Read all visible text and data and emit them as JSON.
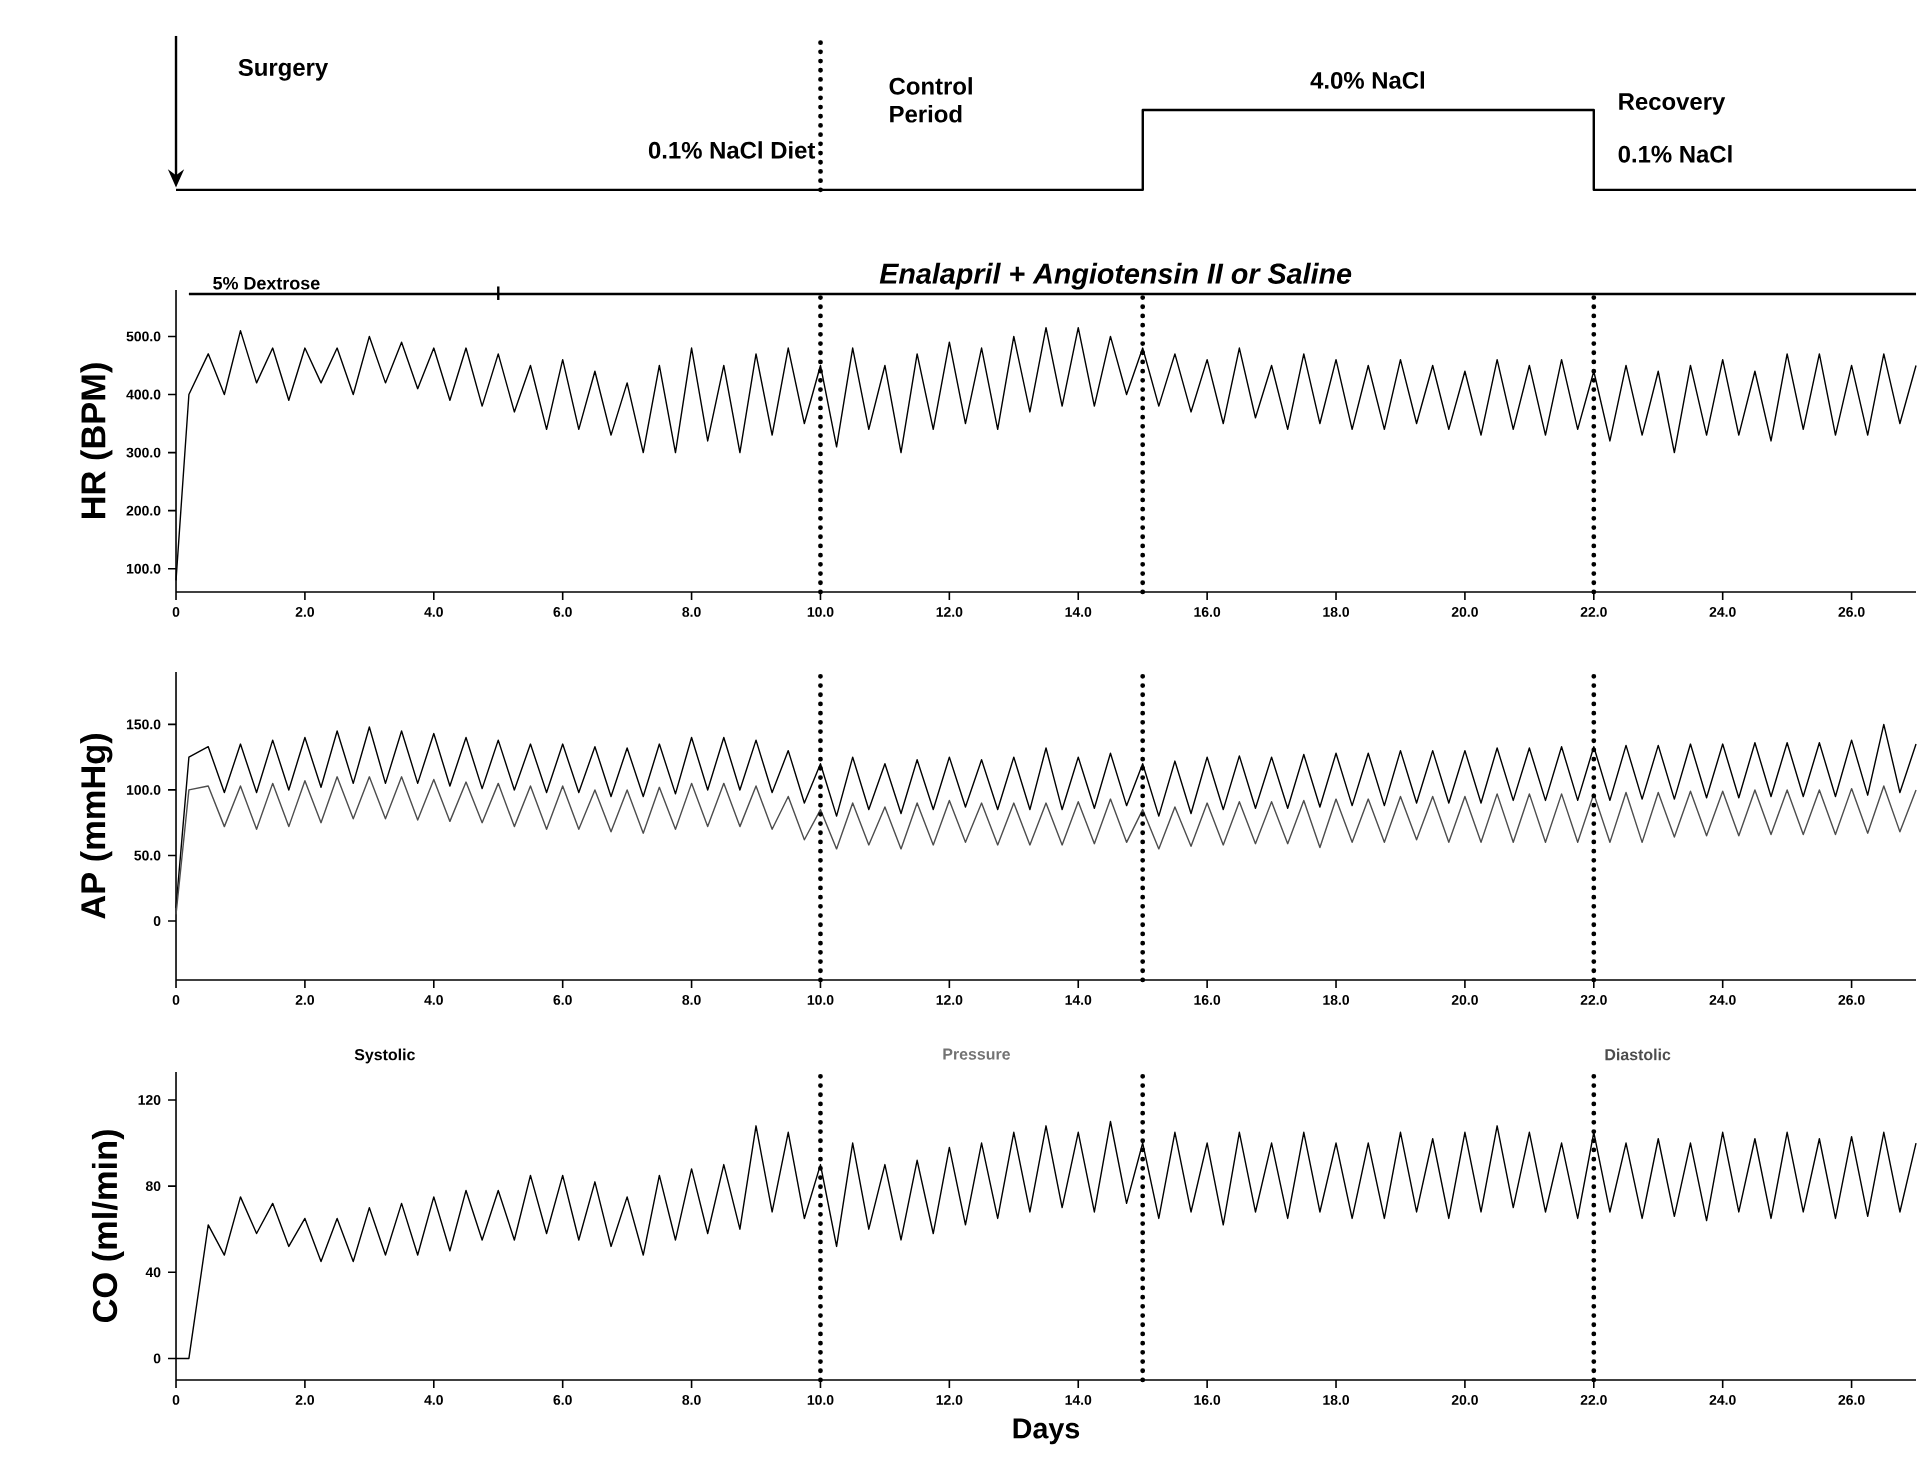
{
  "chart_data": [
    {
      "type": "other",
      "annotations": [
        "Surgery",
        "0.1% NaCl Diet",
        "Control Period",
        "4.0% NaCl",
        "Recovery",
        "0.1% NaCl",
        "5% Dextrose",
        "Enalapril + Angiotensin II  or  Saline"
      ]
    },
    {
      "type": "line",
      "ylabel": "HR (BPM)",
      "xlim": [
        0,
        27
      ],
      "ylim": [
        60,
        580
      ],
      "xticks": [
        0,
        {
          "value": 2,
          "label": "2.0"
        },
        {
          "value": 4,
          "label": "4.0"
        },
        {
          "value": 6,
          "label": "6.0"
        },
        {
          "value": 8,
          "label": "8.0"
        },
        {
          "value": 10,
          "label": "10.0"
        },
        {
          "value": 12,
          "label": "12.0"
        },
        {
          "value": 14,
          "label": "14.0"
        },
        {
          "value": 16,
          "label": "16.0"
        },
        {
          "value": 18,
          "label": "18.0"
        },
        {
          "value": 20,
          "label": "20.0"
        },
        {
          "value": 22,
          "label": "22.0"
        },
        {
          "value": 24,
          "label": "24.0"
        },
        {
          "value": 26,
          "label": "26.0"
        }
      ],
      "yticks": [
        {
          "value": 100,
          "label": "100.0"
        },
        {
          "value": 200,
          "label": "200.0"
        },
        {
          "value": 300,
          "label": "300.0"
        },
        {
          "value": 400,
          "label": "400.0"
        },
        {
          "value": 500,
          "label": "500.0"
        }
      ],
      "x": [
        0,
        0.2,
        0.5,
        0.75,
        1,
        1.25,
        1.5,
        1.75,
        2,
        2.25,
        2.5,
        2.75,
        3,
        3.25,
        3.5,
        3.75,
        4,
        4.25,
        4.5,
        4.75,
        5,
        5.25,
        5.5,
        5.75,
        6,
        6.25,
        6.5,
        6.75,
        7,
        7.25,
        7.5,
        7.75,
        8,
        8.25,
        8.5,
        8.75,
        9,
        9.25,
        9.5,
        9.75,
        10,
        10.25,
        10.5,
        10.75,
        11,
        11.25,
        11.5,
        11.75,
        12,
        12.25,
        12.5,
        12.75,
        13,
        13.25,
        13.5,
        13.75,
        14,
        14.25,
        14.5,
        14.75,
        15,
        15.25,
        15.5,
        15.75,
        16,
        16.25,
        16.5,
        16.75,
        17,
        17.25,
        17.5,
        17.75,
        18,
        18.25,
        18.5,
        18.75,
        19,
        19.25,
        19.5,
        19.75,
        20,
        20.25,
        20.5,
        20.75,
        21,
        21.25,
        21.5,
        21.75,
        22,
        22.25,
        22.5,
        22.75,
        23,
        23.25,
        23.5,
        23.75,
        24,
        24.25,
        24.5,
        24.75,
        25,
        25.25,
        25.5,
        25.75,
        26,
        26.25,
        26.5,
        26.75,
        27
      ],
      "series": [
        {
          "color": "#000000",
          "values": [
            80,
            400,
            470,
            400,
            510,
            420,
            480,
            390,
            480,
            420,
            480,
            400,
            500,
            420,
            490,
            410,
            480,
            390,
            480,
            380,
            470,
            370,
            450,
            340,
            460,
            340,
            440,
            330,
            420,
            300,
            450,
            300,
            480,
            320,
            450,
            300,
            470,
            330,
            480,
            350,
            450,
            310,
            480,
            340,
            450,
            300,
            470,
            340,
            490,
            350,
            480,
            340,
            500,
            370,
            515,
            380,
            515,
            380,
            500,
            400,
            480,
            380,
            470,
            370,
            460,
            350,
            480,
            360,
            450,
            340,
            470,
            350,
            460,
            340,
            450,
            340,
            460,
            350,
            450,
            340,
            440,
            330,
            460,
            340,
            450,
            330,
            460,
            340,
            440,
            320,
            450,
            330,
            440,
            300,
            450,
            330,
            460,
            330,
            440,
            320,
            470,
            340,
            470,
            330,
            450,
            330,
            470,
            350,
            450
          ]
        }
      ],
      "ref_lines": [
        {
          "axis": "x",
          "value": 10,
          "line_style": "dotted"
        },
        {
          "axis": "x",
          "value": 15,
          "line_style": "dotted"
        },
        {
          "axis": "x",
          "value": 22,
          "line_style": "dotted"
        }
      ]
    },
    {
      "type": "line",
      "ylabel": "AP (mmHg)",
      "xlim": [
        0,
        27
      ],
      "ylim": [
        -45,
        190
      ],
      "legend": "bottom",
      "xticks": [
        0,
        {
          "value": 2,
          "label": "2.0"
        },
        {
          "value": 4,
          "label": "4.0"
        },
        {
          "value": 6,
          "label": "6.0"
        },
        {
          "value": 8,
          "label": "8.0"
        },
        {
          "value": 10,
          "label": "10.0"
        },
        {
          "value": 12,
          "label": "12.0"
        },
        {
          "value": 14,
          "label": "14.0"
        },
        {
          "value": 16,
          "label": "16.0"
        },
        {
          "value": 18,
          "label": "18.0"
        },
        {
          "value": 20,
          "label": "20.0"
        },
        {
          "value": 22,
          "label": "22.0"
        },
        {
          "value": 24,
          "label": "24.0"
        },
        {
          "value": 26,
          "label": "26.0"
        }
      ],
      "yticks": [
        0,
        {
          "value": 50,
          "label": "50.0"
        },
        {
          "value": 100,
          "label": "100.0"
        },
        {
          "value": 150,
          "label": "150.0"
        }
      ],
      "x": [
        0,
        0.2,
        0.5,
        0.75,
        1,
        1.25,
        1.5,
        1.75,
        2,
        2.25,
        2.5,
        2.75,
        3,
        3.25,
        3.5,
        3.75,
        4,
        4.25,
        4.5,
        4.75,
        5,
        5.25,
        5.5,
        5.75,
        6,
        6.25,
        6.5,
        6.75,
        7,
        7.25,
        7.5,
        7.75,
        8,
        8.25,
        8.5,
        8.75,
        9,
        9.25,
        9.5,
        9.75,
        10,
        10.25,
        10.5,
        10.75,
        11,
        11.25,
        11.5,
        11.75,
        12,
        12.25,
        12.5,
        12.75,
        13,
        13.25,
        13.5,
        13.75,
        14,
        14.25,
        14.5,
        14.75,
        15,
        15.25,
        15.5,
        15.75,
        16,
        16.25,
        16.5,
        16.75,
        17,
        17.25,
        17.5,
        17.75,
        18,
        18.25,
        18.5,
        18.75,
        19,
        19.25,
        19.5,
        19.75,
        20,
        20.25,
        20.5,
        20.75,
        21,
        21.25,
        21.5,
        21.75,
        22,
        22.25,
        22.5,
        22.75,
        23,
        23.25,
        23.5,
        23.75,
        24,
        24.25,
        24.5,
        24.75,
        25,
        25.25,
        25.5,
        25.75,
        26,
        26.25,
        26.5,
        26.75,
        27
      ],
      "series": [
        {
          "name": "Systolic",
          "color": "#000000",
          "values": [
            10,
            125,
            133,
            98,
            135,
            98,
            138,
            100,
            140,
            102,
            145,
            105,
            148,
            105,
            145,
            105,
            143,
            103,
            140,
            101,
            138,
            100,
            135,
            98,
            135,
            98,
            133,
            95,
            132,
            95,
            135,
            97,
            140,
            100,
            140,
            100,
            138,
            98,
            130,
            90,
            120,
            80,
            125,
            85,
            120,
            82,
            123,
            85,
            125,
            87,
            123,
            85,
            125,
            85,
            132,
            85,
            125,
            86,
            128,
            88,
            120,
            80,
            122,
            82,
            125,
            85,
            126,
            86,
            125,
            86,
            127,
            87,
            128,
            88,
            128,
            88,
            130,
            90,
            130,
            90,
            130,
            90,
            132,
            92,
            132,
            92,
            133,
            92,
            133,
            92,
            134,
            93,
            134,
            93,
            135,
            94,
            135,
            94,
            136,
            95,
            136,
            95,
            136,
            95,
            138,
            96,
            150,
            98,
            135
          ]
        },
        {
          "name": "Diastolic",
          "color": "#4d4d4d",
          "values": [
            5,
            100,
            103,
            72,
            103,
            70,
            105,
            72,
            107,
            75,
            110,
            78,
            110,
            78,
            110,
            77,
            108,
            76,
            106,
            75,
            105,
            72,
            103,
            70,
            103,
            70,
            100,
            68,
            100,
            67,
            102,
            70,
            105,
            72,
            105,
            72,
            103,
            70,
            95,
            62,
            85,
            55,
            90,
            58,
            87,
            55,
            90,
            58,
            92,
            60,
            90,
            58,
            90,
            58,
            90,
            58,
            91,
            59,
            93,
            60,
            85,
            55,
            87,
            57,
            90,
            58,
            91,
            59,
            91,
            59,
            92,
            56,
            93,
            60,
            93,
            60,
            95,
            62,
            95,
            60,
            95,
            60,
            97,
            60,
            97,
            60,
            97,
            60,
            97,
            60,
            98,
            60,
            98,
            64,
            99,
            65,
            99,
            65,
            100,
            66,
            100,
            66,
            100,
            66,
            101,
            67,
            103,
            68,
            100
          ]
        }
      ],
      "annotations": [
        "Pressure"
      ],
      "ref_lines": [
        {
          "axis": "x",
          "value": 10,
          "line_style": "dotted"
        },
        {
          "axis": "x",
          "value": 15,
          "line_style": "dotted"
        },
        {
          "axis": "x",
          "value": 22,
          "line_style": "dotted"
        }
      ]
    },
    {
      "type": "line",
      "ylabel": "CO (ml/min)",
      "xlabel": "Days",
      "xlim": [
        0,
        27
      ],
      "ylim": [
        -10,
        133
      ],
      "xticks": [
        0,
        {
          "value": 2,
          "label": "2.0"
        },
        {
          "value": 4,
          "label": "4.0"
        },
        {
          "value": 6,
          "label": "6.0"
        },
        {
          "value": 8,
          "label": "8.0"
        },
        {
          "value": 10,
          "label": "10.0"
        },
        {
          "value": 12,
          "label": "12.0"
        },
        {
          "value": 14,
          "label": "14.0"
        },
        {
          "value": 16,
          "label": "16.0"
        },
        {
          "value": 18,
          "label": "18.0"
        },
        {
          "value": 20,
          "label": "20.0"
        },
        {
          "value": 22,
          "label": "22.0"
        },
        {
          "value": 24,
          "label": "24.0"
        },
        {
          "value": 26,
          "label": "26.0"
        }
      ],
      "yticks": [
        0,
        40,
        80,
        120
      ],
      "x": [
        0,
        0.2,
        0.5,
        0.75,
        1,
        1.25,
        1.5,
        1.75,
        2,
        2.25,
        2.5,
        2.75,
        3,
        3.25,
        3.5,
        3.75,
        4,
        4.25,
        4.5,
        4.75,
        5,
        5.25,
        5.5,
        5.75,
        6,
        6.25,
        6.5,
        6.75,
        7,
        7.25,
        7.5,
        7.75,
        8,
        8.25,
        8.5,
        8.75,
        9,
        9.25,
        9.5,
        9.75,
        10,
        10.25,
        10.5,
        10.75,
        11,
        11.25,
        11.5,
        11.75,
        12,
        12.25,
        12.5,
        12.75,
        13,
        13.25,
        13.5,
        13.75,
        14,
        14.25,
        14.5,
        14.75,
        15,
        15.25,
        15.5,
        15.75,
        16,
        16.25,
        16.5,
        16.75,
        17,
        17.25,
        17.5,
        17.75,
        18,
        18.25,
        18.5,
        18.75,
        19,
        19.25,
        19.5,
        19.75,
        20,
        20.25,
        20.5,
        20.75,
        21,
        21.25,
        21.5,
        21.75,
        22,
        22.25,
        22.5,
        22.75,
        23,
        23.25,
        23.5,
        23.75,
        24,
        24.25,
        24.5,
        24.75,
        25,
        25.25,
        25.5,
        25.75,
        26,
        26.25,
        26.5,
        26.75,
        27
      ],
      "series": [
        {
          "color": "#000000",
          "values": [
            0,
            0,
            62,
            48,
            75,
            58,
            72,
            52,
            65,
            45,
            65,
            45,
            70,
            48,
            72,
            48,
            75,
            50,
            78,
            55,
            78,
            55,
            85,
            58,
            85,
            55,
            82,
            52,
            75,
            48,
            85,
            55,
            88,
            58,
            90,
            60,
            108,
            68,
            105,
            65,
            90,
            52,
            100,
            60,
            90,
            55,
            92,
            58,
            98,
            62,
            100,
            65,
            105,
            68,
            108,
            70,
            105,
            68,
            110,
            72,
            100,
            65,
            105,
            68,
            100,
            62,
            105,
            68,
            100,
            65,
            105,
            68,
            100,
            65,
            100,
            65,
            105,
            68,
            102,
            65,
            105,
            68,
            108,
            70,
            105,
            68,
            100,
            65,
            105,
            68,
            100,
            65,
            102,
            66,
            100,
            64,
            105,
            68,
            102,
            65,
            105,
            68,
            102,
            65,
            103,
            66,
            105,
            68,
            100
          ]
        }
      ],
      "ref_lines": [
        {
          "axis": "x",
          "value": 10,
          "line_style": "dotted"
        },
        {
          "axis": "x",
          "value": 15,
          "line_style": "dotted"
        },
        {
          "axis": "x",
          "value": 22,
          "line_style": "dotted"
        }
      ]
    }
  ]
}
